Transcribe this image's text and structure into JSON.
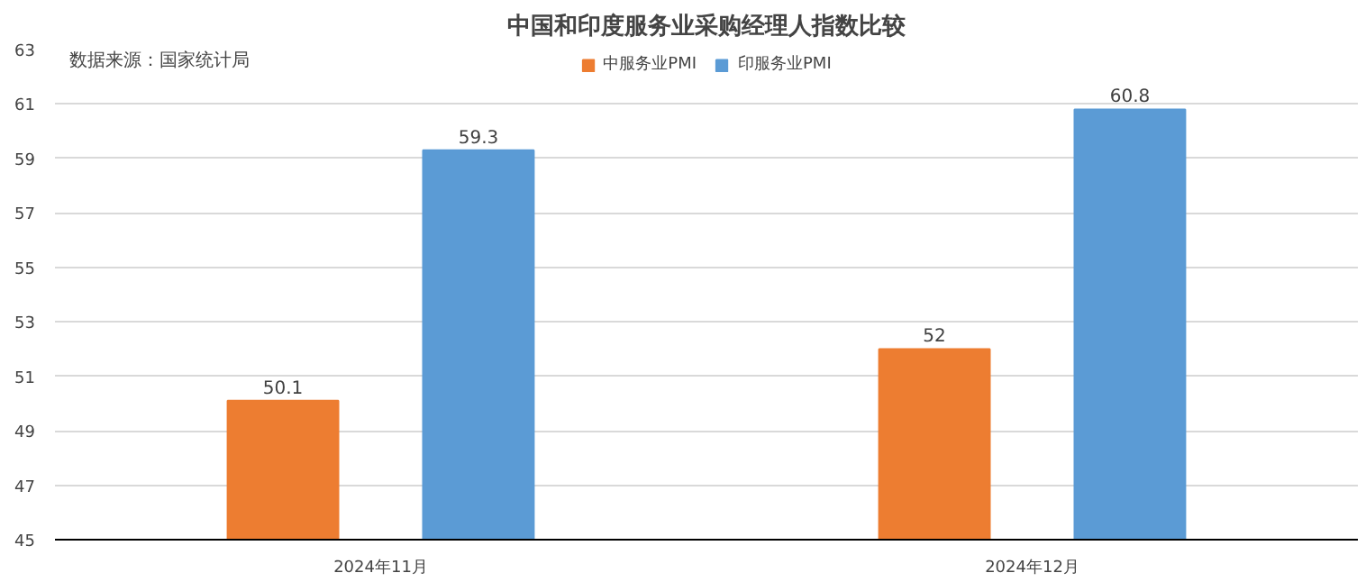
{
  "chart_data": {
    "type": "bar",
    "title": "中国和印度服务业采购经理人指数比较",
    "categories": [
      "2024年11月",
      "2024年12月"
    ],
    "series": [
      {
        "name": "中服务业PMI",
        "color": "#ed7d31",
        "values": [
          50.1,
          52
        ]
      },
      {
        "name": "印服务业PMI",
        "color": "#5b9bd5",
        "values": [
          59.3,
          60.8
        ]
      }
    ],
    "ylim": [
      45,
      63
    ],
    "yticks": [
      45,
      47,
      49,
      51,
      53,
      55,
      57,
      59,
      61,
      63
    ],
    "grid": "y",
    "legend": "top",
    "data_labels": true,
    "annotations": [
      "数据来源：国家统计局"
    ]
  }
}
